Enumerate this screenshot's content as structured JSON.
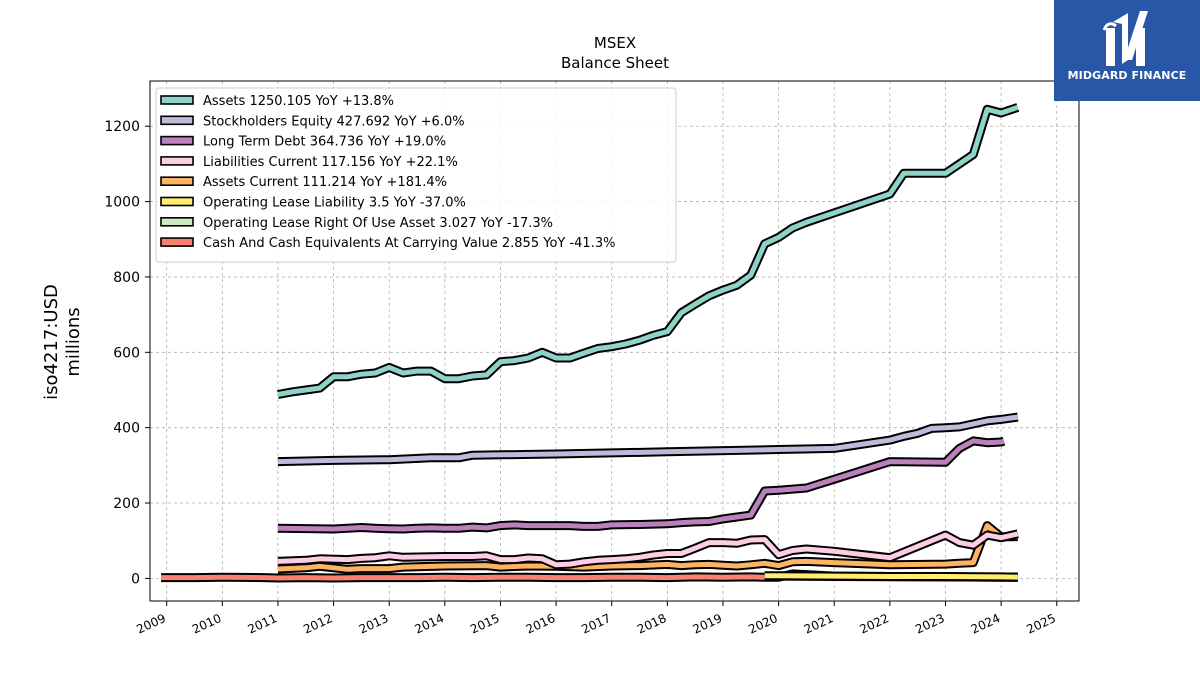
{
  "brand": {
    "name": "MIDGARD FINANCE",
    "bg_color": "#2857a8"
  },
  "chart_data": {
    "type": "line",
    "title": "MSEX",
    "subtitle": "Balance  Sheet",
    "ylabel_line1": "iso4217:USD",
    "ylabel_line2": "millions",
    "xlim": [
      2008.7,
      2025.4
    ],
    "ylim": [
      -60,
      1320
    ],
    "x_ticks": [
      2009,
      2010,
      2011,
      2012,
      2013,
      2014,
      2015,
      2016,
      2017,
      2018,
      2019,
      2020,
      2021,
      2022,
      2023,
      2024,
      2025
    ],
    "y_ticks": [
      0,
      200,
      400,
      600,
      800,
      1000,
      1200
    ],
    "grid": true,
    "legend_position": "top-left",
    "series": [
      {
        "name": "Assets",
        "legend": "Assets  1250.105 YoY +13.8%",
        "color": "#8dd3c7",
        "points": [
          [
            2011.0,
            488
          ],
          [
            2011.25,
            495
          ],
          [
            2011.5,
            500
          ],
          [
            2011.75,
            505
          ],
          [
            2012.0,
            535
          ],
          [
            2012.25,
            535
          ],
          [
            2012.5,
            542
          ],
          [
            2012.75,
            545
          ],
          [
            2013.0,
            560
          ],
          [
            2013.25,
            545
          ],
          [
            2013.5,
            550
          ],
          [
            2013.75,
            550
          ],
          [
            2014.0,
            530
          ],
          [
            2014.25,
            530
          ],
          [
            2014.5,
            537
          ],
          [
            2014.75,
            540
          ],
          [
            2015.0,
            575
          ],
          [
            2015.25,
            578
          ],
          [
            2015.5,
            585
          ],
          [
            2015.75,
            600
          ],
          [
            2016.0,
            585
          ],
          [
            2016.25,
            585
          ],
          [
            2016.5,
            598
          ],
          [
            2016.75,
            610
          ],
          [
            2017.0,
            615
          ],
          [
            2017.25,
            622
          ],
          [
            2017.5,
            632
          ],
          [
            2017.75,
            645
          ],
          [
            2018.0,
            655
          ],
          [
            2018.25,
            705
          ],
          [
            2018.5,
            728
          ],
          [
            2018.75,
            750
          ],
          [
            2019.0,
            765
          ],
          [
            2019.25,
            778
          ],
          [
            2019.5,
            805
          ],
          [
            2019.75,
            888
          ],
          [
            2020.0,
            905
          ],
          [
            2020.25,
            930
          ],
          [
            2020.5,
            945
          ],
          [
            2021.0,
            970
          ],
          [
            2022.0,
            1020
          ],
          [
            2022.25,
            1075
          ],
          [
            2023.0,
            1075
          ],
          [
            2023.25,
            1100
          ],
          [
            2023.5,
            1125
          ],
          [
            2023.75,
            1245
          ],
          [
            2024.0,
            1235
          ],
          [
            2024.3,
            1250
          ]
        ]
      },
      {
        "name": "Stockholders Equity",
        "legend": "Stockholders Equity  427.692 YoY +6.0%",
        "color": "#bebada",
        "points": [
          [
            2011.0,
            310
          ],
          [
            2012.0,
            313
          ],
          [
            2013.0,
            315
          ],
          [
            2013.75,
            320
          ],
          [
            2014.25,
            320
          ],
          [
            2014.5,
            327
          ],
          [
            2016.0,
            330
          ],
          [
            2018.0,
            336
          ],
          [
            2020.0,
            342
          ],
          [
            2021.0,
            345
          ],
          [
            2022.0,
            367
          ],
          [
            2022.25,
            377
          ],
          [
            2022.5,
            385
          ],
          [
            2022.75,
            398
          ],
          [
            2023.0,
            400
          ],
          [
            2023.25,
            402
          ],
          [
            2023.5,
            410
          ],
          [
            2023.75,
            418
          ],
          [
            2024.0,
            422
          ],
          [
            2024.3,
            428
          ]
        ]
      },
      {
        "name": "Long Term Debt",
        "legend": "Long Term Debt  364.736 YoY +19.0%",
        "color": "#bc80bd",
        "points": [
          [
            2011.0,
            133
          ],
          [
            2012.0,
            131
          ],
          [
            2012.25,
            133
          ],
          [
            2012.5,
            135
          ],
          [
            2012.75,
            133
          ],
          [
            2013.0,
            132
          ],
          [
            2013.25,
            131
          ],
          [
            2013.5,
            133
          ],
          [
            2013.75,
            134
          ],
          [
            2014.0,
            133
          ],
          [
            2014.25,
            133
          ],
          [
            2014.5,
            136
          ],
          [
            2014.75,
            134
          ],
          [
            2015.0,
            140
          ],
          [
            2015.25,
            142
          ],
          [
            2015.5,
            140
          ],
          [
            2015.75,
            140
          ],
          [
            2016.0,
            140
          ],
          [
            2016.25,
            140
          ],
          [
            2016.5,
            138
          ],
          [
            2016.75,
            138
          ],
          [
            2017.0,
            142
          ],
          [
            2017.5,
            143
          ],
          [
            2018.0,
            145
          ],
          [
            2018.25,
            148
          ],
          [
            2018.5,
            150
          ],
          [
            2018.75,
            151
          ],
          [
            2019.0,
            158
          ],
          [
            2019.25,
            163
          ],
          [
            2019.5,
            168
          ],
          [
            2019.75,
            232
          ],
          [
            2020.0,
            234
          ],
          [
            2020.5,
            240
          ],
          [
            2021.0,
            263
          ],
          [
            2022.0,
            310
          ],
          [
            2023.0,
            308
          ],
          [
            2023.25,
            345
          ],
          [
            2023.5,
            365
          ],
          [
            2023.75,
            360
          ],
          [
            2024.0,
            362
          ],
          [
            2024.05,
            364
          ]
        ]
      },
      {
        "name": "Liabilities Current",
        "legend": "Liabilities Current  117.156 YoY +22.1%",
        "color": "#fccde5",
        "points": [
          [
            2011.0,
            45
          ],
          [
            2011.5,
            48
          ],
          [
            2011.75,
            52
          ],
          [
            2012.25,
            50
          ],
          [
            2012.5,
            53
          ],
          [
            2012.75,
            55
          ],
          [
            2013.0,
            60
          ],
          [
            2013.25,
            56
          ],
          [
            2014.0,
            58
          ],
          [
            2014.5,
            58
          ],
          [
            2014.75,
            60
          ],
          [
            2015.0,
            50
          ],
          [
            2015.25,
            50
          ],
          [
            2015.5,
            54
          ],
          [
            2015.75,
            52
          ],
          [
            2016.0,
            36
          ],
          [
            2016.25,
            38
          ],
          [
            2016.5,
            44
          ],
          [
            2016.75,
            48
          ],
          [
            2017.0,
            50
          ],
          [
            2017.25,
            52
          ],
          [
            2017.5,
            56
          ],
          [
            2017.75,
            62
          ],
          [
            2018.0,
            66
          ],
          [
            2018.25,
            66
          ],
          [
            2018.5,
            80
          ],
          [
            2018.75,
            95
          ],
          [
            2019.0,
            95
          ],
          [
            2019.25,
            93
          ],
          [
            2019.5,
            102
          ],
          [
            2019.75,
            103
          ],
          [
            2020.0,
            63
          ],
          [
            2020.25,
            74
          ],
          [
            2020.5,
            78
          ],
          [
            2021.0,
            72
          ],
          [
            2022.0,
            55
          ],
          [
            2023.0,
            115
          ],
          [
            2023.25,
            95
          ],
          [
            2023.5,
            88
          ],
          [
            2023.75,
            115
          ],
          [
            2024.0,
            108
          ],
          [
            2024.3,
            118
          ]
        ]
      },
      {
        "name": "Assets Current",
        "legend": "Assets Current  111.214 YoY +181.4%",
        "color": "#fdb462",
        "points": [
          [
            2011.0,
            25
          ],
          [
            2011.5,
            28
          ],
          [
            2011.75,
            32
          ],
          [
            2012.0,
            28
          ],
          [
            2012.25,
            24
          ],
          [
            2012.5,
            26
          ],
          [
            2013.0,
            26
          ],
          [
            2013.25,
            30
          ],
          [
            2014.0,
            33
          ],
          [
            2014.75,
            34
          ],
          [
            2015.0,
            30
          ],
          [
            2015.5,
            33
          ],
          [
            2016.0,
            32
          ],
          [
            2016.5,
            30
          ],
          [
            2017.0,
            33
          ],
          [
            2017.5,
            34
          ],
          [
            2018.0,
            37
          ],
          [
            2018.25,
            34
          ],
          [
            2018.5,
            36
          ],
          [
            2018.75,
            37
          ],
          [
            2019.0,
            35
          ],
          [
            2019.25,
            33
          ],
          [
            2019.5,
            36
          ],
          [
            2019.75,
            40
          ],
          [
            2020.0,
            34
          ],
          [
            2020.25,
            44
          ],
          [
            2020.5,
            45
          ],
          [
            2021.0,
            42
          ],
          [
            2022.0,
            36
          ],
          [
            2023.0,
            38
          ],
          [
            2023.25,
            40
          ],
          [
            2023.5,
            42
          ],
          [
            2023.75,
            140
          ],
          [
            2024.0,
            110
          ],
          [
            2024.3,
            111
          ]
        ]
      },
      {
        "name": "Operating Lease Liability",
        "legend": "Operating Lease Liability  3.5 YoY -37.0%",
        "color": "#ffed6f",
        "points": [
          [
            2019.75,
            7
          ],
          [
            2020.0,
            7
          ],
          [
            2021.0,
            6
          ],
          [
            2022.0,
            5
          ],
          [
            2023.0,
            5
          ],
          [
            2024.0,
            4
          ],
          [
            2024.3,
            3.5
          ]
        ]
      },
      {
        "name": "Operating Lease Right Of Use Asset",
        "legend": "Operating Lease Right Of Use Asset  3.027 YoY -17.3%",
        "color": "#ccebc5",
        "points": [
          [
            2019.75,
            6
          ],
          [
            2020.0,
            6
          ],
          [
            2021.0,
            5
          ],
          [
            2022.0,
            4.5
          ],
          [
            2023.0,
            4
          ],
          [
            2024.0,
            3.5
          ],
          [
            2024.3,
            3
          ]
        ]
      },
      {
        "name": "Cash And Cash Equivalents At Carrying Value",
        "legend": "Cash And Cash Equivalents At Carrying Value  2.855 YoY -41.3%",
        "color": "#fb8072",
        "points": [
          [
            2008.9,
            2
          ],
          [
            2009.5,
            2
          ],
          [
            2010.0,
            3
          ],
          [
            2010.75,
            2
          ],
          [
            2011.0,
            1
          ],
          [
            2011.5,
            2
          ],
          [
            2012.0,
            1
          ],
          [
            2012.5,
            2
          ],
          [
            2013.0,
            2
          ],
          [
            2013.5,
            2
          ],
          [
            2014.0,
            3
          ],
          [
            2014.5,
            2
          ],
          [
            2015.0,
            3
          ],
          [
            2015.5,
            3
          ],
          [
            2016.0,
            2
          ],
          [
            2016.5,
            2
          ],
          [
            2017.0,
            3
          ],
          [
            2017.5,
            3
          ],
          [
            2018.0,
            2
          ],
          [
            2018.5,
            4
          ],
          [
            2019.0,
            3
          ],
          [
            2019.5,
            4
          ],
          [
            2019.75,
            3
          ],
          [
            2020.0,
            3
          ],
          [
            2020.25,
            12
          ],
          [
            2020.5,
            10
          ],
          [
            2021.0,
            6
          ],
          [
            2022.0,
            5
          ],
          [
            2023.0,
            4
          ],
          [
            2024.0,
            3
          ],
          [
            2024.3,
            2.855
          ]
        ]
      }
    ]
  }
}
